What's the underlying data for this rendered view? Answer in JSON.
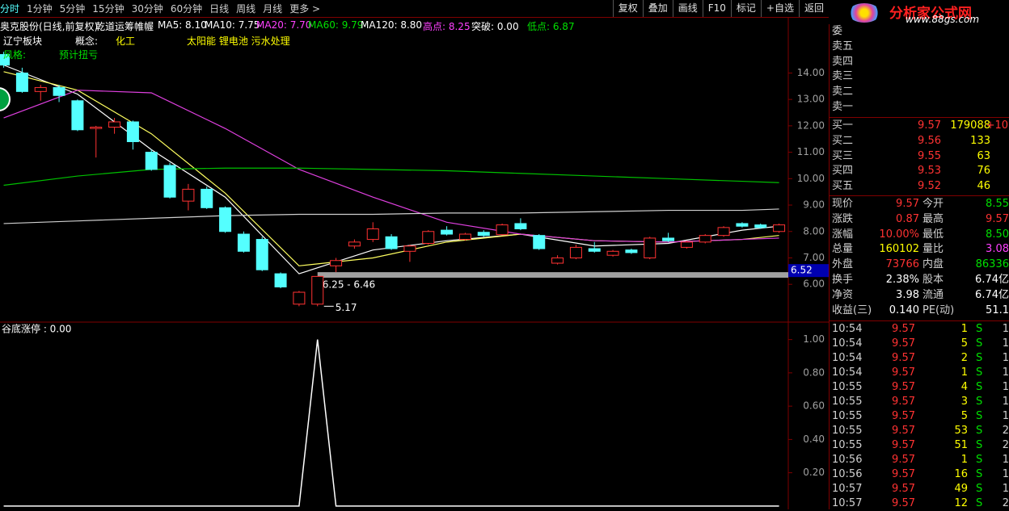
{
  "toolbar": {
    "periods": [
      "分时",
      "1分钟",
      "5分钟",
      "15分钟",
      "30分钟",
      "60分钟",
      "日线",
      "周线",
      "月线",
      "更多 >"
    ],
    "buttons": [
      "复权",
      "叠加",
      "画线",
      "F10",
      "标记",
      "+自选",
      "返回"
    ]
  },
  "logo": {
    "title": "分析家公式网",
    "url": "www.88gs.com"
  },
  "info": {
    "line1": [
      {
        "text": "奥克股份(日线,前复权)",
        "color": "#ffffff"
      },
      {
        "text": "乾道运筹帷幄",
        "color": "#ffffff"
      },
      {
        "text": "MA5: 8.10",
        "color": "#ffffff"
      },
      {
        "text": "MA10: 7.75",
        "color": "#ffffff"
      },
      {
        "text": "MA20: 7.70",
        "color": "#ff40ff"
      },
      {
        "text": "MA60: 9.79",
        "color": "#00e000"
      },
      {
        "text": "MA120: 8.80",
        "color": "#ffffff"
      },
      {
        "text": "高点: 8.25",
        "color": "#ff40ff"
      },
      {
        "text": "突破: 0.00",
        "color": "#ffffff"
      },
      {
        "text": "低点: 6.87",
        "color": "#00e000"
      }
    ],
    "line2": [
      {
        "text": "辽宁板块",
        "color": "#ffffff"
      },
      {
        "text": "概念:",
        "color": "#ffffff"
      },
      {
        "text": "化工",
        "color": "#ffff00"
      },
      {
        "text": "太阳能 锂电池 污水处理",
        "color": "#ffff00"
      }
    ],
    "line3": [
      {
        "text": "风格:",
        "color": "#00e000"
      },
      {
        "text": "预计扭亏",
        "color": "#00e000"
      }
    ]
  },
  "chart_data": [
    {
      "type": "candlestick",
      "up_color": "#ff3232",
      "down_color": "#54ffff",
      "xlim": [
        -0.2,
        42.5
      ],
      "ylim": [
        4.6,
        16.0
      ],
      "yticks": [
        {
          "value": 6,
          "label": "6.00"
        },
        {
          "value": 7,
          "label": "7.00"
        },
        {
          "value": 8,
          "label": "8.00"
        },
        {
          "value": 9,
          "label": "9.00"
        },
        {
          "value": 10,
          "label": "10.00"
        },
        {
          "value": 11,
          "label": "11.00"
        },
        {
          "value": 12,
          "label": "12.00"
        },
        {
          "value": 13,
          "label": "13.00"
        },
        {
          "value": 14,
          "label": "14.00"
        }
      ],
      "open": [
        14.7,
        14.0,
        13.3,
        13.45,
        12.95,
        11.9,
        11.95,
        12.15,
        11.0,
        10.5,
        9.15,
        9.6,
        8.9,
        7.9,
        7.7,
        6.4,
        5.25,
        5.25,
        6.7,
        7.45,
        7.7,
        7.8,
        7.25,
        7.55,
        8.05,
        7.7,
        7.97,
        7.88,
        8.3,
        7.85,
        6.8,
        7.0,
        7.35,
        7.1,
        7.3,
        7.0,
        7.75,
        7.4,
        7.6,
        7.85,
        8.3,
        8.25,
        8.0
      ],
      "high": [
        14.8,
        14.2,
        13.55,
        13.55,
        13.0,
        12.0,
        12.3,
        12.2,
        11.1,
        10.6,
        9.8,
        9.7,
        8.95,
        8.0,
        7.8,
        6.45,
        5.75,
        6.25,
        7.0,
        7.7,
        8.35,
        7.9,
        7.5,
        8.05,
        8.2,
        7.95,
        8.05,
        8.3,
        8.5,
        7.9,
        7.1,
        7.5,
        7.6,
        7.3,
        7.35,
        7.8,
        7.95,
        7.65,
        7.9,
        8.2,
        8.35,
        8.3,
        8.3
      ],
      "low": [
        14.2,
        13.25,
        12.95,
        12.9,
        11.8,
        10.8,
        11.7,
        11.1,
        10.3,
        9.25,
        8.8,
        8.85,
        7.95,
        7.2,
        6.5,
        5.85,
        5.17,
        5.17,
        6.46,
        7.35,
        7.6,
        7.3,
        6.85,
        7.5,
        7.85,
        7.65,
        7.8,
        7.85,
        8.05,
        7.3,
        6.75,
        6.95,
        7.2,
        7.05,
        7.15,
        6.95,
        7.6,
        7.35,
        7.55,
        7.8,
        8.15,
        8.1,
        7.95
      ],
      "close": [
        14.3,
        13.3,
        13.45,
        13.15,
        11.85,
        11.95,
        12.15,
        11.4,
        10.35,
        9.3,
        9.6,
        8.9,
        8.0,
        7.25,
        6.55,
        5.9,
        5.7,
        6.3,
        6.9,
        7.6,
        8.1,
        7.35,
        7.45,
        8.0,
        7.9,
        7.9,
        7.85,
        8.25,
        8.1,
        7.35,
        7.0,
        7.4,
        7.25,
        7.25,
        7.2,
        7.75,
        7.65,
        7.6,
        7.85,
        8.15,
        8.2,
        8.15,
        8.25
      ],
      "line_x": [
        0,
        4,
        8,
        12,
        16,
        20,
        24,
        28,
        32,
        36,
        40,
        42
      ],
      "series": [
        {
          "color": "#ffffff",
          "values": [
            14.3,
            13.2,
            11.1,
            9.3,
            6.4,
            7.3,
            7.65,
            7.9,
            7.45,
            7.55,
            8.05,
            8.2
          ]
        },
        {
          "color": "#ffff60",
          "values": [
            14.05,
            13.35,
            11.7,
            9.45,
            6.7,
            7.0,
            7.6,
            7.9,
            7.65,
            7.6,
            7.7,
            7.85
          ]
        },
        {
          "color": "#e040e0",
          "values": [
            12.3,
            13.35,
            13.25,
            11.9,
            10.35,
            9.3,
            8.35,
            7.9,
            7.65,
            7.6,
            7.7,
            7.75
          ]
        },
        {
          "color": "#00c000",
          "values": [
            9.75,
            10.1,
            10.35,
            10.4,
            10.4,
            10.35,
            10.3,
            10.2,
            10.1,
            10.0,
            9.9,
            9.85
          ]
        },
        {
          "color": "#d0d0d0",
          "values": [
            8.3,
            8.4,
            8.5,
            8.6,
            8.65,
            8.65,
            8.7,
            8.7,
            8.75,
            8.8,
            8.8,
            8.85
          ]
        }
      ],
      "gap": {
        "index": 17,
        "low": 6.25,
        "high": 6.46,
        "label": "6.25 - 6.46"
      },
      "low_mark": {
        "index": 17,
        "value": 5.17,
        "label": "5.17"
      },
      "price_tag": 6.52
    },
    {
      "type": "line",
      "title": "谷底涨停 : 0.00",
      "xlim": [
        -0.2,
        42.5
      ],
      "ylim": [
        -0.02,
        1.1
      ],
      "yticks": [
        {
          "value": 0.2,
          "label": "0.20"
        },
        {
          "value": 0.4,
          "label": "0.40"
        },
        {
          "value": 0.6,
          "label": "0.60"
        },
        {
          "value": 0.8,
          "label": "0.80"
        },
        {
          "value": 1,
          "label": "1.00"
        }
      ],
      "x": [
        0,
        16,
        17,
        18,
        42
      ],
      "values": [
        0,
        0,
        1,
        0,
        0
      ],
      "color": "#ffffff"
    }
  ],
  "order_book": {
    "sell": [
      "委",
      "卖五",
      "卖四",
      "卖三",
      "卖二",
      "卖一"
    ],
    "buy": [
      [
        "买一",
        "9.57",
        "179088",
        "+10"
      ],
      [
        "买二",
        "9.56",
        "133"
      ],
      [
        "买三",
        "9.55",
        "63"
      ],
      [
        "买四",
        "9.53",
        "76"
      ],
      [
        "买五",
        "9.52",
        "46"
      ]
    ]
  },
  "quotes": [
    [
      "现价",
      "9.57",
      "今开",
      "8.55"
    ],
    [
      "涨跌",
      "0.87",
      "最高",
      "9.57"
    ],
    [
      "涨幅",
      "10.00%",
      "最低",
      "8.50"
    ],
    [
      "总量",
      "160102",
      "量比",
      "3.08"
    ],
    [
      "外盘",
      "73766",
      "内盘",
      "86336"
    ],
    [
      "换手",
      "2.38%",
      "股本",
      "6.74亿"
    ],
    [
      "净资",
      "3.98",
      "流通",
      "6.74亿"
    ],
    [
      "收益(三)",
      "0.140",
      "PE(动)",
      "51.1"
    ]
  ],
  "trades": [
    [
      "10:54",
      "9.57",
      "1",
      "S",
      "1"
    ],
    [
      "10:54",
      "9.57",
      "5",
      "S",
      "1"
    ],
    [
      "10:54",
      "9.57",
      "2",
      "S",
      "1"
    ],
    [
      "10:54",
      "9.57",
      "1",
      "S",
      "1"
    ],
    [
      "10:55",
      "9.57",
      "4",
      "S",
      "1"
    ],
    [
      "10:55",
      "9.57",
      "3",
      "S",
      "1"
    ],
    [
      "10:55",
      "9.57",
      "5",
      "S",
      "1"
    ],
    [
      "10:55",
      "9.57",
      "53",
      "S",
      "2"
    ],
    [
      "10:55",
      "9.57",
      "51",
      "S",
      "2"
    ],
    [
      "10:56",
      "9.57",
      "1",
      "S",
      "1"
    ],
    [
      "10:56",
      "9.57",
      "16",
      "S",
      "1"
    ],
    [
      "10:57",
      "9.57",
      "49",
      "S",
      "1"
    ],
    [
      "10:57",
      "9.57",
      "12",
      "S",
      "2"
    ]
  ]
}
